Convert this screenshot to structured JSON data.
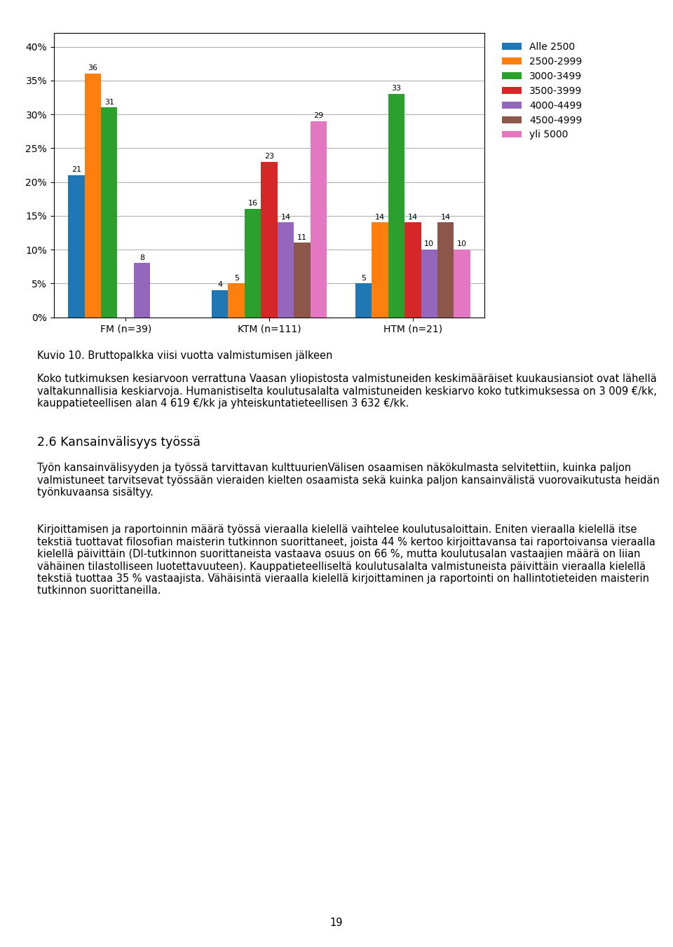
{
  "chart_data": {
    "type": "bar",
    "title": "Kuvio 10. Bruttopalkka viisi vuotta valmistumisen jälkeen",
    "categories": [
      "FM (n=39)",
      "KTM (n=111)",
      "HTM (n=21)"
    ],
    "series": [
      {
        "name": "Alle 2500",
        "values": [
          21,
          4,
          5
        ],
        "value_labels": [
          "21",
          "4",
          "5"
        ]
      },
      {
        "name": "2500-2999",
        "values": [
          36,
          5,
          14
        ],
        "value_labels": [
          "36",
          "5",
          "14"
        ]
      },
      {
        "name": "3000-3499",
        "values": [
          31,
          16,
          33
        ],
        "value_labels": [
          "31",
          "16",
          "33"
        ]
      },
      {
        "name": "3500-3999",
        "values": [
          0,
          23,
          14
        ],
        "value_labels": [
          null,
          "23",
          "14"
        ]
      },
      {
        "name": "4000-4499",
        "values": [
          8,
          14,
          10
        ],
        "value_labels": [
          "8",
          "14",
          "10"
        ]
      },
      {
        "name": "4500-4999",
        "values": [
          0,
          11,
          14
        ],
        "value_labels": [
          null,
          "11",
          "14"
        ]
      },
      {
        "name": "yli 5000",
        "values": [
          0,
          29,
          10
        ],
        "value_labels": [
          null,
          "29",
          "10"
        ]
      }
    ],
    "ylim": [
      0,
      42
    ],
    "yticks": [
      {
        "value": 0,
        "label": "0%"
      },
      {
        "value": 5,
        "label": "5%"
      },
      {
        "value": 10,
        "label": "10%"
      },
      {
        "value": 15,
        "label": "15%"
      },
      {
        "value": 20,
        "label": "20%"
      },
      {
        "value": 25,
        "label": "25%"
      },
      {
        "value": 30,
        "label": "30%"
      },
      {
        "value": 35,
        "label": "35%"
      },
      {
        "value": 40,
        "label": "40%"
      }
    ],
    "grid": true,
    "legend": "upper left",
    "data_labels": true,
    "annotations": [
      "Koko tutkimuksen kesiarvoon verrattuna Vaasan yliopistosta valmistuneiden keskimääräiset kuukausiansiot ovat lähellä valtakunnallisia keskiarvoja. Humanistiselta koulutusalalta valmistuneiden keskiarvo koko tutkimuksessa on 3 009 €/kk, kauppatieteellisen alan 4 619 €/kk ja yhteiskuntatieteellisen 3 632 €/kk.",
      "2.6 Kansainvälisyys työssä",
      "Työn kansainvälisyyden ja työssä tarvittavan kulttuurienVälisen osaamisen näkökulmasta selvitettiin, kuinka paljon valmistuneet tarvitsevat työssään vieraiden kielten osaamista sekä kuinka paljon kansainvälistä vuorovaikutusta heidän työnkuvaansa sisältyy.",
      "Kirjoittamisen ja raportoinnin määrä työssä vieraalla kielellä vaihtelee koulutusaloittain. Eniten vieraalla kielellä itse tekstiä tuottavat filosofian maisterin tutkinnon suorittaneet, joista 44 % kertoo kirjoittavansa tai raportoivansa vieraalla kielellä päivittäin (DI-tutkinnon suorittaneista vastaava osuus on 66 %, mutta koulutusalan vastaajien määrä on liian vähäinen tilastolliseen luotettavuuteen). Kauppatieteelliseltä koulutusalalta valmistuneista päivittäin vieraalla kielellä tekstiä tuottaa 35 % vastaajista. Vähäisintä vieraalla kielellä kirjoittaminen ja raportointi on hallintotieteiden maisterin tutkinnon suorittaneilla.",
      "19"
    ]
  }
}
